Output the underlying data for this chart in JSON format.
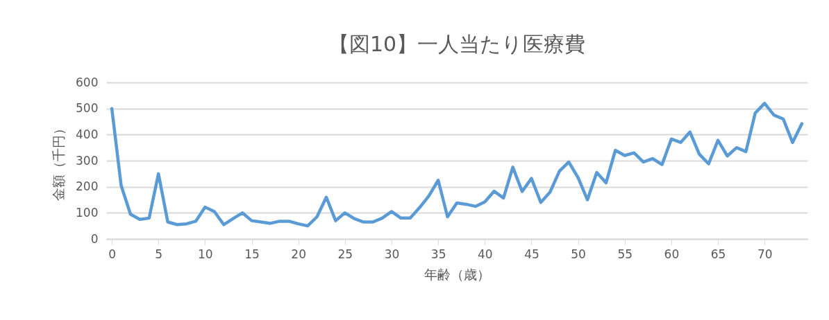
{
  "chart_data": {
    "type": "line",
    "title": "【図10】一人当たり医療費",
    "xlabel": "年齢（歳）",
    "ylabel": "金額（千円）",
    "x": [
      0,
      1,
      2,
      3,
      4,
      5,
      6,
      7,
      8,
      9,
      10,
      11,
      12,
      13,
      14,
      15,
      16,
      17,
      18,
      19,
      20,
      21,
      22,
      23,
      24,
      25,
      26,
      27,
      28,
      29,
      30,
      31,
      32,
      33,
      34,
      35,
      36,
      37,
      38,
      39,
      40,
      41,
      42,
      43,
      44,
      45,
      46,
      47,
      48,
      49,
      50,
      51,
      52,
      53,
      54,
      55,
      56,
      57,
      58,
      59,
      60,
      61,
      62,
      63,
      64,
      65,
      66,
      67,
      68,
      69,
      70,
      71,
      72,
      73,
      74
    ],
    "series": [
      {
        "color": "#5b9bd5",
        "values": [
          500,
          205,
          95,
          75,
          80,
          250,
          65,
          55,
          58,
          68,
          122,
          105,
          55,
          78,
          100,
          70,
          65,
          60,
          68,
          68,
          58,
          50,
          85,
          160,
          70,
          100,
          78,
          65,
          65,
          80,
          105,
          80,
          80,
          120,
          165,
          225,
          85,
          138,
          133,
          125,
          142,
          183,
          157,
          275,
          182,
          232,
          140,
          180,
          260,
          295,
          235,
          150,
          255,
          215,
          340,
          320,
          330,
          295,
          308,
          285,
          383,
          370,
          410,
          325,
          288,
          378,
          318,
          350,
          335,
          483,
          520,
          475,
          460,
          370,
          442
        ]
      }
    ],
    "xlim": [
      -0.6,
      74.6
    ],
    "xticks": [
      0,
      5,
      10,
      15,
      20,
      25,
      30,
      35,
      40,
      45,
      50,
      55,
      60,
      65,
      70
    ],
    "ylim": [
      0,
      600
    ],
    "yticks": [
      0,
      100,
      200,
      300,
      400,
      500,
      600
    ],
    "grid": "y",
    "marker": "none",
    "line_style": "solid"
  }
}
